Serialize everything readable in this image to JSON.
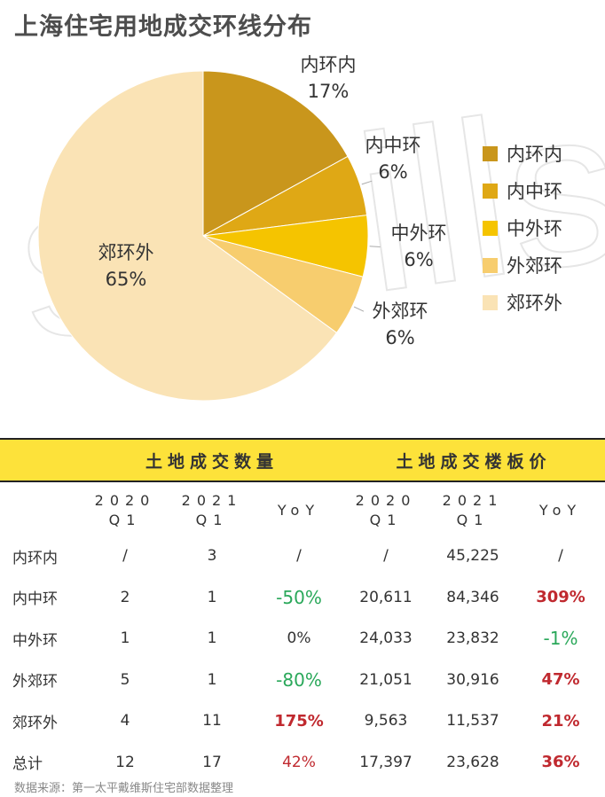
{
  "title": "上海住宅用地成交环线分布",
  "watermark": "savills",
  "chart_data": {
    "type": "pie",
    "title": "上海住宅用地成交环线分布",
    "slices": [
      {
        "label": "内环内",
        "value": 17,
        "value_label": "17%",
        "color": "#c9961c"
      },
      {
        "label": "内中环",
        "value": 6,
        "value_label": "6%",
        "color": "#dfa815"
      },
      {
        "label": "中外环",
        "value": 6,
        "value_label": "6%",
        "color": "#f5c400"
      },
      {
        "label": "外郊环",
        "value": 6,
        "value_label": "6%",
        "color": "#f7cd6e"
      },
      {
        "label": "郊环外",
        "value": 65,
        "value_label": "65%",
        "color": "#fae3b5"
      }
    ],
    "legend_position": "right"
  },
  "table": {
    "group_headers": [
      "土地成交数量",
      "土地成交楼板价"
    ],
    "sub_headers": [
      {
        "line1": "2020",
        "line2": "Q1"
      },
      {
        "line1": "2021",
        "line2": "Q1"
      },
      {
        "line1": "YoY",
        "line2": ""
      },
      {
        "line1": "2020",
        "line2": "Q1"
      },
      {
        "line1": "2021",
        "line2": "Q1"
      },
      {
        "line1": "YoY",
        "line2": ""
      }
    ],
    "rows": [
      {
        "label": "内环内",
        "cells": [
          "/",
          "3",
          "/",
          "/",
          "45,225",
          "/"
        ]
      },
      {
        "label": "内中环",
        "cells": [
          "2",
          "1",
          "-50%",
          "20,611",
          "84,346",
          "309%"
        ]
      },
      {
        "label": "中外环",
        "cells": [
          "1",
          "1",
          "0%",
          "24,033",
          "23,832",
          "-1%"
        ]
      },
      {
        "label": "外郊环",
        "cells": [
          "5",
          "1",
          "-80%",
          "21,051",
          "30,916",
          "47%"
        ]
      },
      {
        "label": "郊环外",
        "cells": [
          "4",
          "11",
          "175%",
          "9,563",
          "11,537",
          "21%"
        ]
      },
      {
        "label": "总计",
        "cells": [
          "12",
          "17",
          "42%",
          "17,397",
          "23,628",
          "36%"
        ]
      }
    ]
  },
  "source_note": "数据来源：第一太平戴维斯住宅部数据整理"
}
